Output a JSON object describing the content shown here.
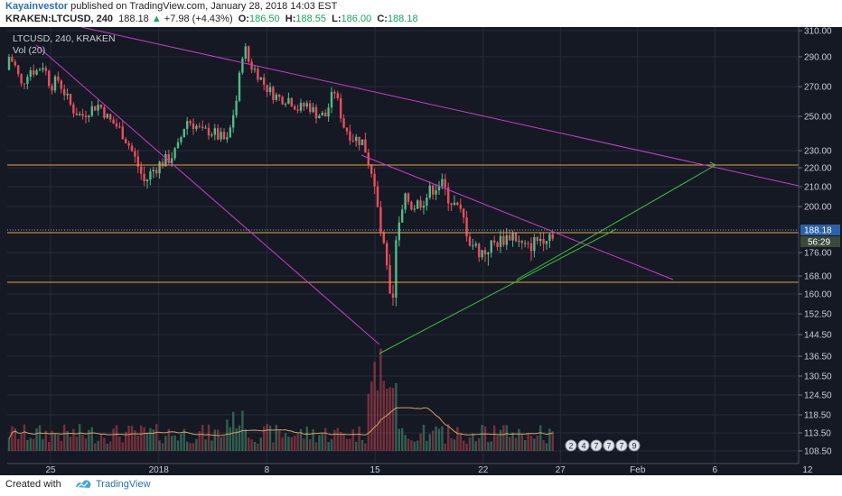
{
  "header": {
    "author": "Kayainvestor",
    "published": "published on TradingView.com, January 28, 2018 14:03 EST",
    "symbol": "KRAKEN:LTCUSD, 240",
    "last": "188.18",
    "arrow": "▲",
    "change": "+7.98 (+4.43%)",
    "o_label": "O:",
    "o": "186.50",
    "h_label": "H:",
    "h": "188.55",
    "l_label": "L:",
    "l": "186.00",
    "c_label": "C:",
    "c": "188.18"
  },
  "legend": {
    "series": "LTCUSD, 240, KRAKEN",
    "volume": "Vol (20)"
  },
  "footer": {
    "created_with": "Created with",
    "brand": "TradingView"
  },
  "chart_data": {
    "type": "candlestick",
    "price_axis_labels": [
      "310.00",
      "290.00",
      "270.00",
      "250.00",
      "230.00",
      "220.00",
      "210.00",
      "200.00",
      "176.00",
      "168.00",
      "160.00",
      "152.50",
      "144.50",
      "136.50",
      "130.50",
      "124.50",
      "118.50",
      "113.50",
      "108.50"
    ],
    "time_axis_labels": [
      "25",
      "2018",
      "8",
      "15",
      "22",
      "27",
      "Feb",
      "6",
      "12"
    ],
    "last_price_label": "188.18",
    "countdown_label": "56:29",
    "horizontal_levels": [
      220,
      188,
      166
    ],
    "trendlines": [
      {
        "from": [
          "Dec 23",
          312
        ],
        "to": [
          "Feb 13",
          210
        ],
        "color": "#c93cc9"
      },
      {
        "from": [
          "Dec 23",
          298
        ],
        "to": [
          "Jan 17",
          140
        ],
        "color": "#c93cc9"
      },
      {
        "from": [
          "Jan 19",
          216
        ],
        "to": [
          "Feb 4",
          166
        ],
        "color": "#c93cc9"
      },
      {
        "from": [
          "Jan 17",
          140
        ],
        "to": [
          "Jan 30",
          186
        ],
        "color": "#3fbf3f"
      },
      {
        "from": [
          "Jan 22",
          168
        ],
        "to": [
          "Feb 8",
          220
        ],
        "color": "#3fbf3f"
      }
    ],
    "event_badges": [
      "2",
      "4",
      "7",
      "7",
      "7",
      "9"
    ],
    "colors": {
      "background": "#151924",
      "up": "#53b987",
      "down": "#eb4d5c",
      "grid": "#262b38",
      "level": "#e8a23a",
      "resistance": "#c93cc9",
      "support": "#3fbf3f",
      "volume_ma": "#d4a35f"
    }
  }
}
